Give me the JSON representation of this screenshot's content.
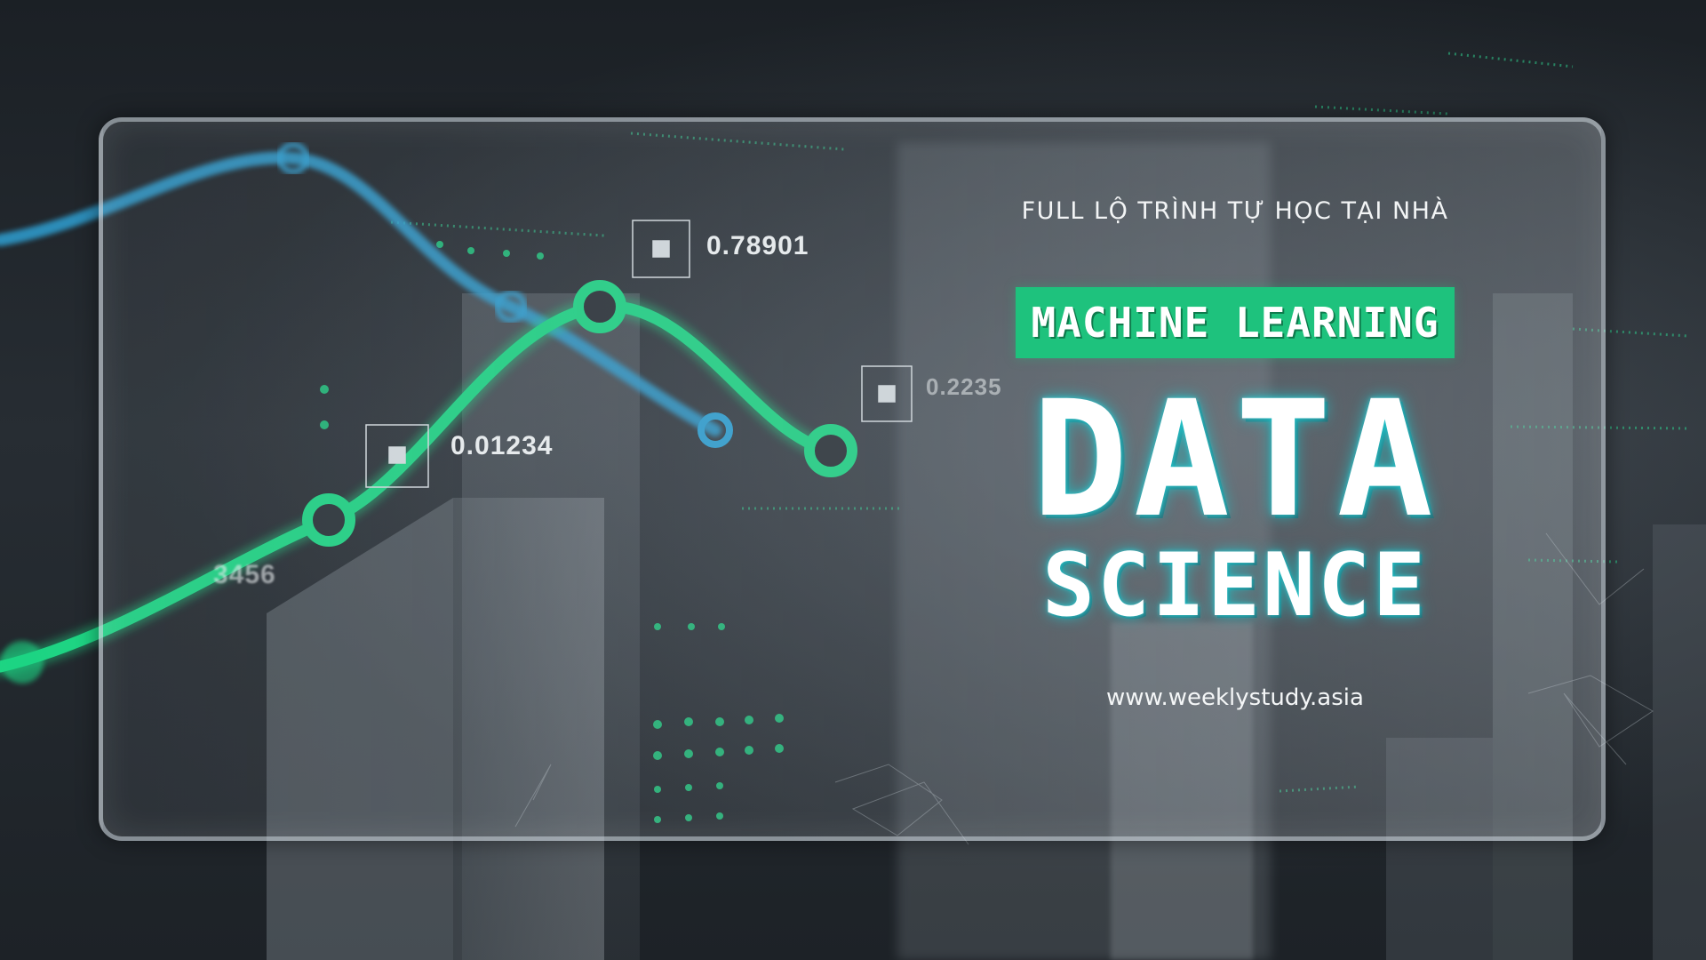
{
  "tagline": "FULL LỘ TRÌNH TỰ HỌC TẠI NHÀ",
  "banner": {
    "label": "MACHINE LEARNING",
    "color": "#1ec27d"
  },
  "title": {
    "line1": "DATA",
    "line2": "SCIENCE"
  },
  "website": "www.weeklystudy.asia",
  "data_labels": {
    "a": "0.78901",
    "b": "0.01234",
    "c": "0.2235",
    "d": "3456"
  },
  "colors": {
    "green_line": "#1ed483",
    "blue_line": "#2f9fd1",
    "glow": "#2fc8d2"
  }
}
